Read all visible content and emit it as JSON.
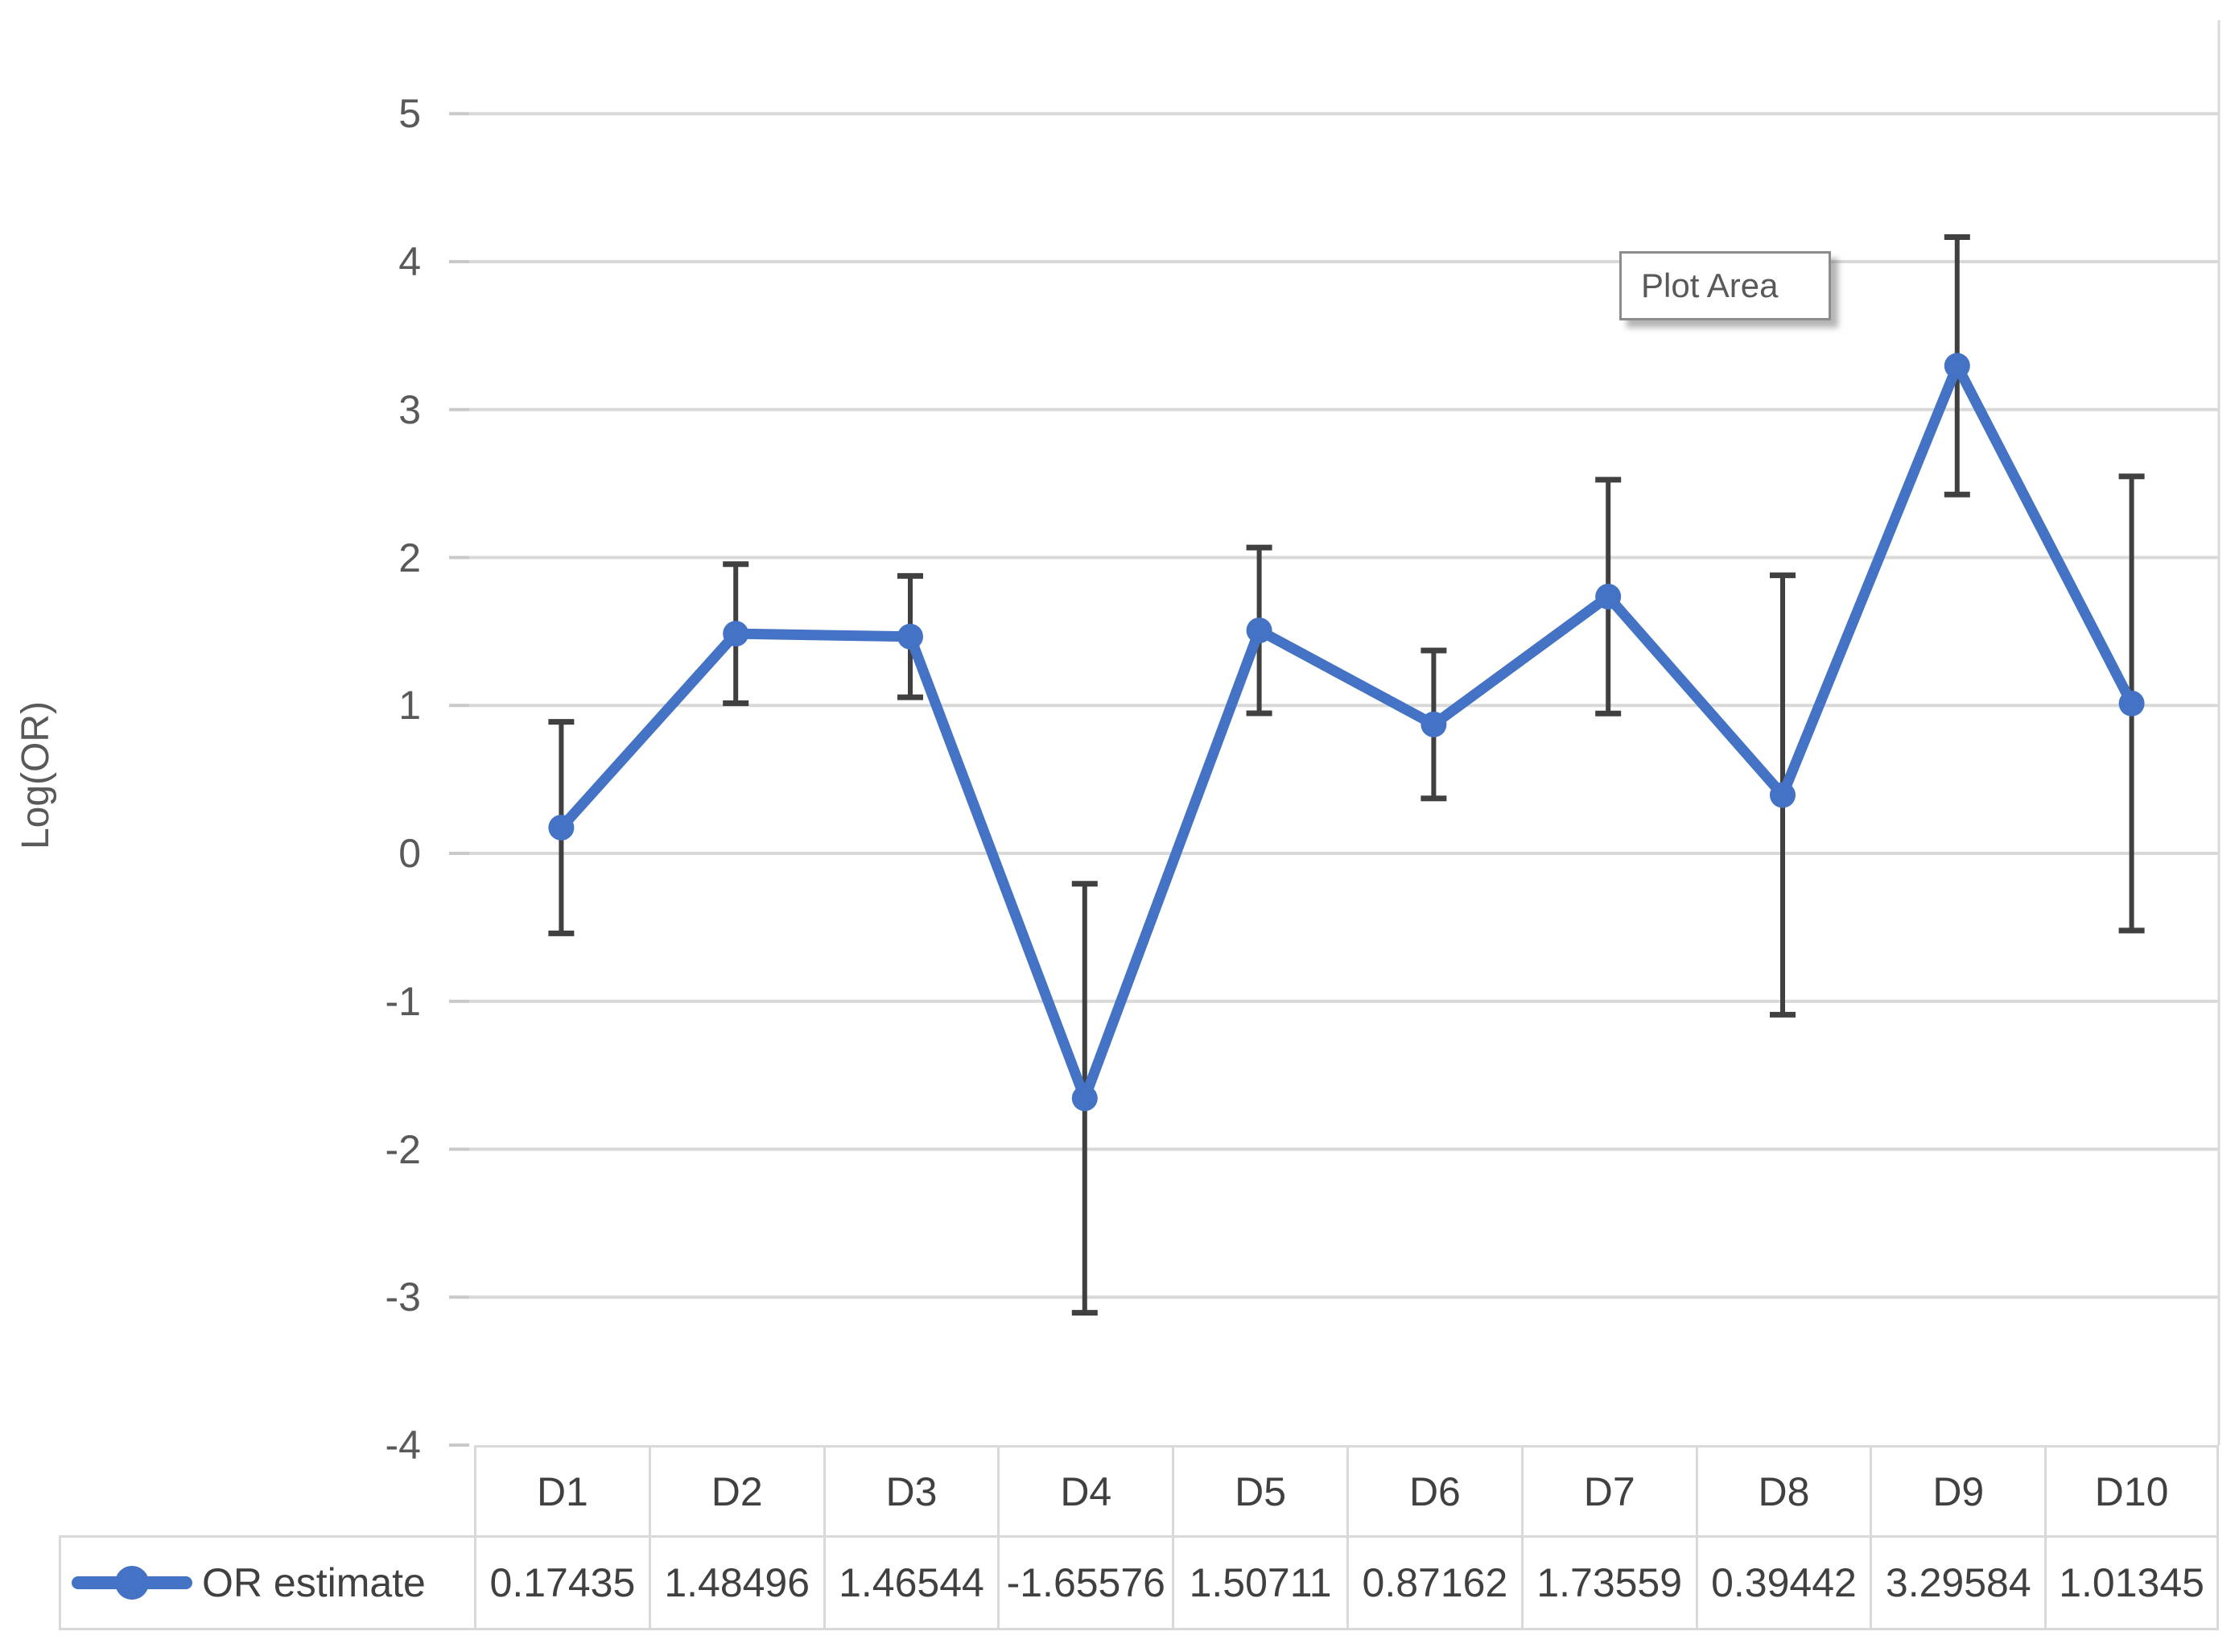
{
  "tooltip": {
    "label": "Plot Area"
  },
  "chart_data": {
    "type": "line",
    "title": "",
    "xlabel": "",
    "ylabel": "Log(OR)",
    "ylim": [
      -4,
      5
    ],
    "yticks": [
      5,
      4,
      3,
      2,
      1,
      0,
      -1,
      -2,
      -3,
      -4
    ],
    "ytick_labels": [
      "5",
      "4",
      "3",
      "2",
      "1",
      "0",
      "-1",
      "-2",
      "-3",
      "-4"
    ],
    "grid": true,
    "legend_position": "data-table-left",
    "categories": [
      "D1",
      "D2",
      "D3",
      "D4",
      "D5",
      "D6",
      "D7",
      "D8",
      "D9",
      "D10"
    ],
    "series": [
      {
        "name": "OR estimate",
        "marker": "circle",
        "color": "#4472C4",
        "values": [
          0.17435,
          1.48496,
          1.46544,
          -1.65576,
          1.50711,
          0.87162,
          1.73559,
          0.39442,
          3.29584,
          1.01345
        ],
        "display_values": [
          "0.17435",
          "1.48496",
          "1.46544",
          "-1.65576",
          "1.50711",
          "0.87162",
          "1.73559",
          "0.39442",
          "3.29584",
          "1.01345"
        ],
        "errors": [
          0.715,
          0.47,
          0.41,
          1.45,
          0.56,
          0.5,
          0.79,
          1.485,
          0.87,
          1.535
        ]
      }
    ],
    "error_bar_color": "#404040",
    "gridline_color": "#D9D9D9",
    "axis_text_color": "#595959"
  }
}
